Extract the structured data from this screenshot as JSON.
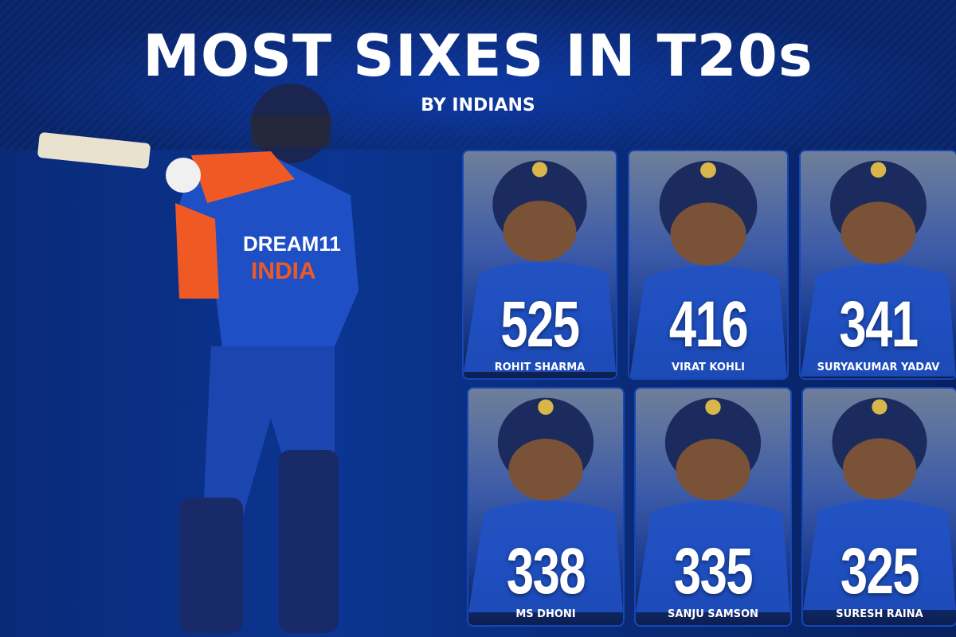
{
  "header": {
    "title": "MOST SIXES IN T20s",
    "subtitle": "BY INDIANS"
  },
  "hero": {
    "jersey_text_1": "DREAM11",
    "jersey_text_2": "INDIA"
  },
  "players": [
    {
      "name": "ROHIT SHARMA",
      "sixes": "525"
    },
    {
      "name": "VIRAT KOHLI",
      "sixes": "416"
    },
    {
      "name": "SURYAKUMAR YADAV",
      "sixes": "341"
    },
    {
      "name": "MS DHONI",
      "sixes": "338"
    },
    {
      "name": "SANJU SAMSON",
      "sixes": "335"
    },
    {
      "name": "SURESH RAINA",
      "sixes": "325"
    }
  ],
  "colors": {
    "background": "#0b3591",
    "card_border": "#1547b8",
    "jersey_blue": "#1e4fc4",
    "jersey_orange": "#ef5a24"
  }
}
